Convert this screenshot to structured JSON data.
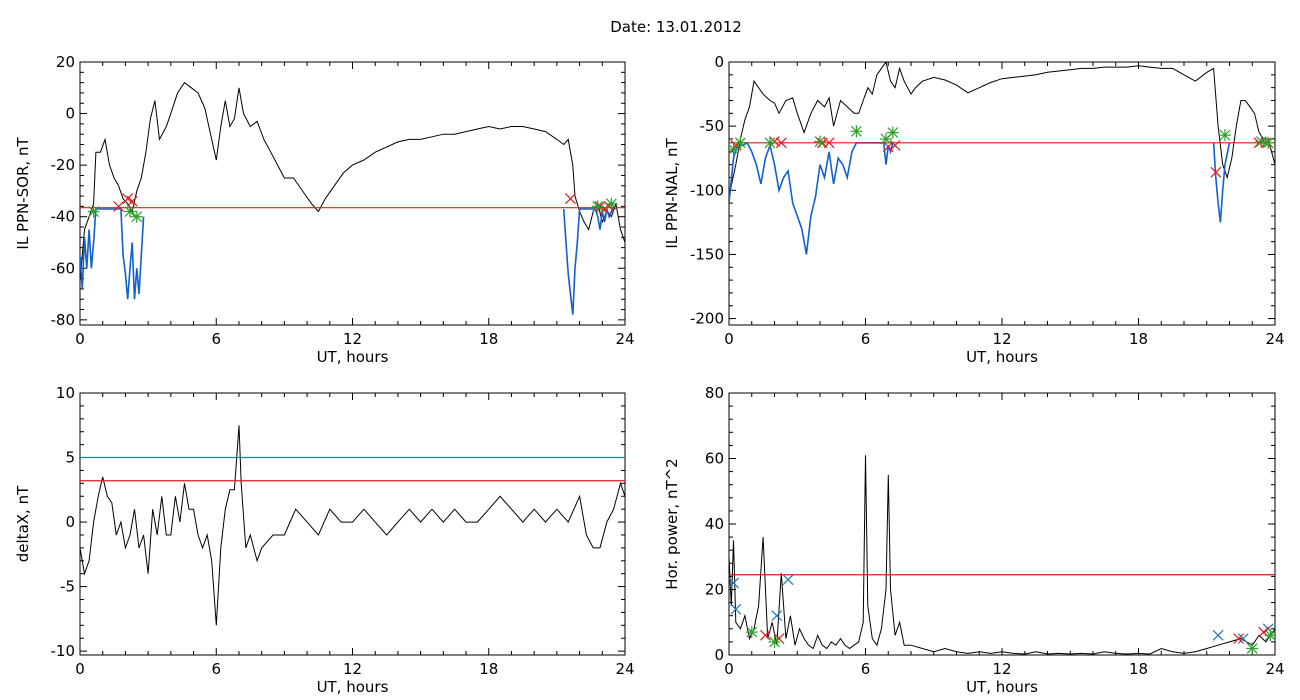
{
  "page": {
    "title": "Date:  13.01.2012"
  },
  "chart_data": [
    {
      "type": "line",
      "xlabel": "UT, hours",
      "ylabel": "IL PPN-SOR, nT",
      "xlim": [
        0,
        24
      ],
      "ylim": [
        -82,
        20
      ],
      "xticks": [
        0,
        6,
        12,
        18,
        24
      ],
      "yticks": [
        20,
        0,
        -20,
        -40,
        -60,
        -80
      ],
      "threshold_lines": [
        {
          "y": -36.5,
          "color": "#e41a1c"
        }
      ],
      "series": [
        {
          "color": "#000000",
          "x": [
            0,
            0.2,
            0.4,
            0.6,
            0.7,
            0.9,
            1.1,
            1.3,
            1.5,
            1.7,
            1.9,
            2.1,
            2.3,
            2.5,
            2.7,
            2.9,
            3.1,
            3.3,
            3.5,
            3.8,
            4.0,
            4.3,
            4.6,
            4.9,
            5.2,
            5.5,
            5.8,
            6.0,
            6.2,
            6.4,
            6.6,
            6.8,
            7.0,
            7.2,
            7.5,
            7.8,
            8.1,
            8.4,
            8.7,
            9.0,
            9.4,
            9.8,
            10.2,
            10.5,
            10.8,
            11.2,
            11.6,
            12.0,
            12.5,
            13,
            13.5,
            14,
            14.5,
            15,
            15.5,
            16,
            16.5,
            17,
            17.5,
            18,
            18.5,
            19,
            19.5,
            20,
            20.5,
            21,
            21.3,
            21.5,
            21.7,
            21.8,
            22.0,
            22.2,
            22.4,
            22.6,
            22.8,
            23.0,
            23.2,
            23.4,
            23.6,
            23.8,
            24
          ],
          "values": [
            -65,
            -45,
            -40,
            -35,
            -15,
            -15,
            -10,
            -20,
            -25,
            -28,
            -33,
            -35,
            -38,
            -30,
            -25,
            -15,
            -2,
            5,
            -10,
            -5,
            0,
            8,
            12,
            10,
            8,
            2,
            -10,
            -18,
            -5,
            5,
            -5,
            -2,
            10,
            0,
            -5,
            -3,
            -10,
            -15,
            -20,
            -25,
            -25,
            -30,
            -35,
            -38,
            -33,
            -28,
            -23,
            -20,
            -18,
            -15,
            -13,
            -11,
            -10,
            -10,
            -9,
            -8,
            -8,
            -7,
            -6,
            -5,
            -6,
            -5,
            -5,
            -6,
            -7,
            -10,
            -12,
            -10,
            -20,
            -32,
            -38,
            -42,
            -45,
            -38,
            -35,
            -42,
            -38,
            -40,
            -35,
            -45,
            -50
          ]
        },
        {
          "color": "#1060d0",
          "x": [
            0,
            0.1,
            0.2,
            0.3,
            0.4,
            0.5,
            0.6,
            0.7,
            1.8,
            1.9,
            2.0,
            2.1,
            2.2,
            2.3,
            2.4,
            2.5,
            2.6,
            2.7,
            2.8,
            21.3,
            21.4,
            21.5,
            21.6,
            21.7,
            21.8,
            21.9,
            22.0,
            22.7,
            22.8,
            22.9,
            23.0,
            23.1,
            23.2,
            23.3,
            23.4,
            23.5,
            23.6
          ],
          "values": [
            -55,
            -68,
            -48,
            -60,
            -45,
            -60,
            -50,
            -37,
            -37,
            -55,
            -62,
            -72,
            -60,
            -50,
            -72,
            -60,
            -70,
            -55,
            -40,
            -37,
            -50,
            -62,
            -70,
            -78,
            -60,
            -50,
            -37,
            -37,
            -40,
            -45,
            -38,
            -42,
            -37,
            -40,
            -38,
            -36,
            -37
          ]
        }
      ],
      "markers": [
        {
          "symbol": "x",
          "color": "#e41a1c",
          "points": [
            [
              1.7,
              -36
            ],
            [
              2.1,
              -33
            ],
            [
              2.3,
              -34
            ],
            [
              21.6,
              -33
            ],
            [
              22.9,
              -36
            ],
            [
              23.1,
              -37
            ],
            [
              23.3,
              -36
            ]
          ]
        },
        {
          "symbol": "asterisk",
          "color": "#2ca02c",
          "points": [
            [
              0.6,
              -38
            ],
            [
              2.5,
              -40
            ],
            [
              2.2,
              -38
            ],
            [
              22.8,
              -36
            ],
            [
              23.4,
              -35
            ]
          ]
        }
      ]
    },
    {
      "type": "line",
      "xlabel": "UT, hours",
      "ylabel": "IL PPN-NAL, nT",
      "xlim": [
        0,
        24
      ],
      "ylim": [
        -205,
        0
      ],
      "xticks": [
        0,
        6,
        12,
        18,
        24
      ],
      "yticks": [
        0,
        -50,
        -100,
        -150,
        -200
      ],
      "threshold_lines": [
        {
          "y": -63,
          "color": "#e41a1c"
        }
      ],
      "series": [
        {
          "color": "#000000",
          "x": [
            0,
            0.3,
            0.5,
            0.7,
            0.9,
            1.1,
            1.3,
            1.5,
            1.8,
            2.0,
            2.2,
            2.5,
            2.8,
            3.0,
            3.3,
            3.6,
            3.9,
            4.2,
            4.4,
            4.6,
            4.9,
            5.2,
            5.5,
            5.7,
            5.9,
            6.1,
            6.3,
            6.5,
            6.7,
            6.9,
            7.1,
            7.3,
            7.5,
            7.7,
            8.0,
            8.2,
            8.5,
            9,
            9.5,
            10,
            10.5,
            11,
            11.5,
            12,
            12.5,
            13,
            13.5,
            14,
            14.5,
            15,
            15.5,
            16,
            16.5,
            17,
            17.5,
            18,
            18.5,
            19,
            19.5,
            20,
            20.5,
            21,
            21.3,
            21.5,
            21.7,
            21.9,
            22.1,
            22.3,
            22.5,
            22.7,
            22.9,
            23.1,
            23.3,
            23.5,
            23.7,
            24
          ],
          "values": [
            -105,
            -80,
            -60,
            -45,
            -35,
            -15,
            -20,
            -25,
            -30,
            -32,
            -40,
            -30,
            -28,
            -40,
            -55,
            -40,
            -30,
            -35,
            -28,
            -50,
            -30,
            -35,
            -40,
            -40,
            -30,
            -20,
            -25,
            -10,
            -5,
            0,
            -15,
            -20,
            -5,
            -15,
            -25,
            -20,
            -15,
            -12,
            -14,
            -18,
            -24,
            -20,
            -16,
            -13,
            -12,
            -11,
            -10,
            -8,
            -7,
            -6,
            -5,
            -5,
            -4,
            -4,
            -4,
            -3,
            -4,
            -5,
            -5,
            -10,
            -15,
            -8,
            -5,
            -50,
            -80,
            -90,
            -75,
            -50,
            -30,
            -30,
            -35,
            -40,
            -55,
            -60,
            -60,
            -80
          ]
        },
        {
          "color": "#1060d0",
          "x": [
            0,
            0.2,
            0.4,
            0.6,
            0.8,
            1.0,
            1.2,
            1.4,
            1.6,
            1.8,
            2.0,
            2.2,
            2.4,
            2.6,
            2.8,
            3.0,
            3.2,
            3.4,
            3.6,
            3.8,
            4.0,
            4.2,
            4.4,
            4.6,
            4.8,
            5.0,
            5.2,
            5.4,
            5.6,
            6.8,
            6.9,
            7.0,
            7.1,
            7.2,
            21.3,
            21.4,
            21.5,
            21.6,
            21.7,
            21.8,
            22.0
          ],
          "values": [
            -110,
            -75,
            -63,
            -65,
            -63,
            -70,
            -80,
            -95,
            -75,
            -65,
            -80,
            -100,
            -90,
            -85,
            -110,
            -120,
            -130,
            -150,
            -120,
            -105,
            -80,
            -90,
            -70,
            -95,
            -75,
            -80,
            -90,
            -70,
            -63,
            -63,
            -80,
            -65,
            -70,
            -63,
            -63,
            -90,
            -110,
            -125,
            -100,
            -80,
            -63
          ]
        }
      ],
      "markers": [
        {
          "symbol": "x",
          "color": "#e41a1c",
          "points": [
            [
              0.3,
              -65
            ],
            [
              2.0,
              -62
            ],
            [
              2.3,
              -63
            ],
            [
              4.1,
              -63
            ],
            [
              4.4,
              -63
            ],
            [
              7.0,
              -66
            ],
            [
              7.3,
              -65
            ],
            [
              21.4,
              -86
            ],
            [
              23.3,
              -63
            ],
            [
              23.6,
              -63
            ]
          ]
        },
        {
          "symbol": "asterisk",
          "color": "#2ca02c",
          "points": [
            [
              0.2,
              -68
            ],
            [
              0.5,
              -63
            ],
            [
              1.8,
              -63
            ],
            [
              4.0,
              -62
            ],
            [
              5.6,
              -54
            ],
            [
              6.9,
              -60
            ],
            [
              7.2,
              -55
            ],
            [
              21.8,
              -57
            ],
            [
              23.4,
              -62
            ],
            [
              23.7,
              -63
            ]
          ]
        }
      ]
    },
    {
      "type": "line",
      "xlabel": "UT, hours",
      "ylabel": "deltaX, nT",
      "xlim": [
        0,
        24
      ],
      "ylim": [
        -10.3,
        10
      ],
      "xticks": [
        0,
        6,
        12,
        18,
        24
      ],
      "yticks": [
        10,
        5,
        0,
        -5,
        -10
      ],
      "threshold_lines": [
        {
          "y": 5,
          "color": "#208a8a"
        },
        {
          "y": 3.2,
          "color": "#e41a1c"
        }
      ],
      "series": [
        {
          "color": "#000000",
          "x": [
            0,
            0.2,
            0.4,
            0.6,
            0.8,
            1.0,
            1.2,
            1.4,
            1.6,
            1.8,
            2.0,
            2.2,
            2.4,
            2.6,
            2.8,
            3.0,
            3.2,
            3.4,
            3.6,
            3.8,
            4.0,
            4.2,
            4.4,
            4.6,
            4.8,
            5.0,
            5.2,
            5.4,
            5.6,
            5.8,
            6.0,
            6.2,
            6.4,
            6.6,
            6.8,
            7.0,
            7.1,
            7.3,
            7.5,
            7.8,
            8.0,
            8.5,
            9,
            9.5,
            10,
            10.5,
            11,
            11.5,
            12,
            12.5,
            13,
            13.5,
            14,
            14.5,
            15,
            15.5,
            16,
            16.5,
            17,
            17.5,
            18,
            18.5,
            19,
            19.5,
            20,
            20.5,
            21,
            21.5,
            22,
            22.3,
            22.6,
            22.9,
            23.2,
            23.5,
            23.8,
            24
          ],
          "values": [
            -2,
            -4,
            -3,
            0,
            2,
            3.5,
            2,
            1.5,
            -1,
            0,
            -2,
            -1,
            1,
            -2,
            -1,
            -4,
            1,
            -1,
            2,
            -1,
            -1,
            2,
            0,
            3,
            1,
            1,
            -1,
            -2,
            -1,
            -3,
            -8,
            -2,
            1,
            2.5,
            2.5,
            7.5,
            3,
            -2,
            -1,
            -3,
            -2,
            -1,
            -1,
            1,
            0,
            -1,
            1,
            0,
            0,
            1,
            0,
            -1,
            0,
            1,
            0,
            1,
            0,
            1,
            0,
            0,
            1,
            2,
            1,
            0,
            1,
            0,
            1,
            0,
            2,
            -1,
            -2,
            -2,
            0,
            1,
            3,
            2
          ]
        }
      ]
    },
    {
      "type": "line",
      "xlabel": "UT, hours",
      "ylabel": "Hor. power, nT^2",
      "xlim": [
        0,
        24
      ],
      "ylim": [
        0,
        80
      ],
      "xticks": [
        0,
        6,
        12,
        18,
        24
      ],
      "yticks": [
        80,
        60,
        40,
        20,
        0
      ],
      "threshold_lines": [
        {
          "y": 24.5,
          "color": "#e41a1c"
        }
      ],
      "series": [
        {
          "color": "#000000",
          "x": [
            0,
            0.1,
            0.2,
            0.3,
            0.5,
            0.7,
            0.9,
            1.1,
            1.3,
            1.5,
            1.7,
            1.9,
            2.1,
            2.3,
            2.5,
            2.7,
            2.9,
            3.1,
            3.3,
            3.5,
            3.7,
            3.9,
            4.1,
            4.3,
            4.5,
            4.7,
            4.9,
            5.1,
            5.3,
            5.5,
            5.7,
            5.9,
            6.0,
            6.1,
            6.3,
            6.5,
            6.7,
            6.9,
            7.0,
            7.1,
            7.3,
            7.5,
            7.7,
            8.0,
            8.5,
            9,
            9.5,
            10,
            10.5,
            11,
            11.5,
            12,
            12.5,
            13,
            13.5,
            14,
            14.5,
            15,
            15.5,
            16,
            16.5,
            17,
            17.5,
            18,
            18.5,
            19,
            19.5,
            20,
            20.5,
            21,
            21.5,
            22,
            22.5,
            23,
            23.3,
            23.6,
            24
          ],
          "values": [
            30,
            15,
            35,
            10,
            8,
            12,
            5,
            8,
            15,
            36,
            5,
            10,
            3,
            25,
            5,
            12,
            3,
            8,
            5,
            3,
            2,
            6,
            3,
            2,
            4,
            3,
            5,
            3,
            2,
            3,
            4,
            10,
            61,
            15,
            5,
            3,
            8,
            20,
            55,
            20,
            6,
            10,
            3,
            3,
            2,
            1,
            2,
            1,
            0.5,
            1,
            0.5,
            1,
            0.5,
            0.3,
            1,
            0.3,
            0.5,
            0.3,
            0.5,
            0.3,
            1,
            0.5,
            0.3,
            0.5,
            0.3,
            2,
            1,
            0.5,
            1,
            2,
            3,
            4,
            5,
            3,
            6,
            4,
            8
          ]
        }
      ],
      "markers": [
        {
          "symbol": "x",
          "color": "#1f77b4",
          "points": [
            [
              0.2,
              22
            ],
            [
              0.3,
              14
            ],
            [
              2.1,
              12
            ],
            [
              2.6,
              23
            ],
            [
              21.5,
              6
            ],
            [
              22.6,
              5
            ],
            [
              23.7,
              8
            ]
          ]
        },
        {
          "symbol": "x",
          "color": "#e41a1c",
          "points": [
            [
              1.6,
              6
            ],
            [
              2.2,
              5
            ],
            [
              22.4,
              5
            ],
            [
              23.5,
              7
            ]
          ]
        },
        {
          "symbol": "asterisk",
          "color": "#2ca02c",
          "points": [
            [
              1.0,
              7
            ],
            [
              2.0,
              4
            ],
            [
              23.0,
              2
            ],
            [
              23.8,
              6
            ]
          ]
        }
      ]
    }
  ]
}
